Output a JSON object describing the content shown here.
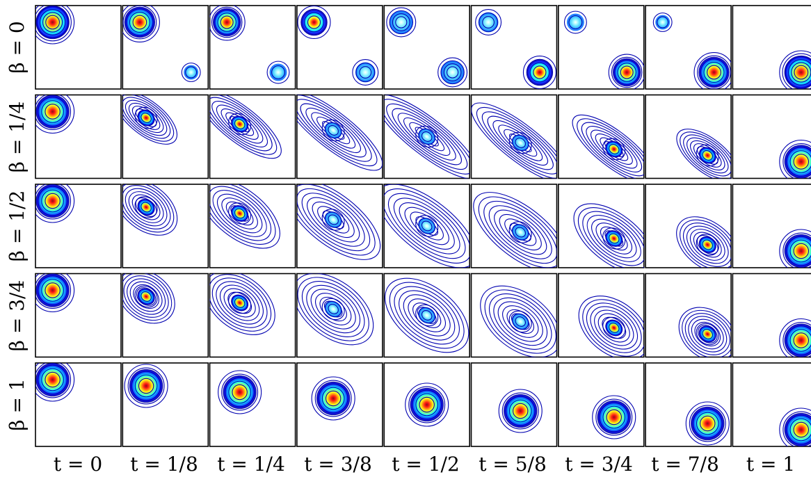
{
  "figure": {
    "row_labels": [
      "β = 0",
      "β = 1/4",
      "β = 1/2",
      "β = 3/4",
      "β = 1"
    ],
    "col_labels": [
      "t = 0",
      "t = 1/8",
      "t = 1/4",
      "t = 3/8",
      "t = 1/2",
      "t = 5/8",
      "t = 3/4",
      "t = 7/8",
      "t = 1"
    ],
    "colormap": [
      "#00008f",
      "#0000ff",
      "#0080ff",
      "#00ffff",
      "#80ff80",
      "#ffff00",
      "#ff8000",
      "#ff0000",
      "#800000"
    ],
    "contour_color": "#0000b0",
    "frame_color": "#000000"
  },
  "chart_data": {
    "type": "contour-grid",
    "description_source": "Gaussian density interpolation between a source at top-left and a target at bottom-right",
    "beta": [
      0,
      0.25,
      0.5,
      0.75,
      1
    ],
    "t": [
      0,
      0.125,
      0.25,
      0.375,
      0.5,
      0.625,
      0.75,
      0.875,
      1
    ],
    "source_center": [
      0.2,
      0.8
    ],
    "target_center": [
      0.8,
      0.2
    ]
  }
}
